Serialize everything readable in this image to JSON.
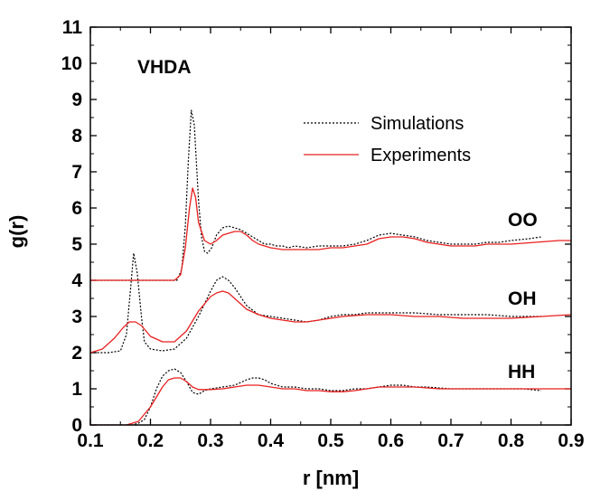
{
  "chart_data": {
    "type": "line",
    "xlabel": "r [nm]",
    "ylabel": "g(r)",
    "xlim": [
      0.1,
      0.9
    ],
    "ylim": [
      0,
      11
    ],
    "xticks": [
      "0.1",
      "0.2",
      "0.3",
      "0.4",
      "0.5",
      "0.6",
      "0.7",
      "0.8",
      "0.9"
    ],
    "yticks": [
      "0",
      "1",
      "2",
      "3",
      "4",
      "5",
      "6",
      "7",
      "8",
      "9",
      "10",
      "11"
    ],
    "grid": false,
    "legend_position": "top-right",
    "annotations": {
      "label": "VHDA",
      "oo": "OO",
      "oh": "OH",
      "hh": "HH"
    },
    "series": [
      {
        "name": "Simulations",
        "color": "#000000",
        "style": "dotted",
        "curves": [
          {
            "group": "OO",
            "points": [
              [
                0.1,
                4.0
              ],
              [
                0.2,
                4.0
              ],
              [
                0.244,
                4.0
              ],
              [
                0.252,
                4.3
              ],
              [
                0.258,
                5.5
              ],
              [
                0.263,
                7.3
              ],
              [
                0.268,
                8.7
              ],
              [
                0.273,
                8.3
              ],
              [
                0.28,
                6.2
              ],
              [
                0.285,
                5.2
              ],
              [
                0.29,
                4.8
              ],
              [
                0.295,
                4.75
              ],
              [
                0.302,
                4.9
              ],
              [
                0.31,
                5.25
              ],
              [
                0.32,
                5.45
              ],
              [
                0.33,
                5.5
              ],
              [
                0.34,
                5.45
              ],
              [
                0.35,
                5.4
              ],
              [
                0.36,
                5.3
              ],
              [
                0.37,
                5.2
              ],
              [
                0.38,
                5.1
              ],
              [
                0.39,
                5.0
              ],
              [
                0.4,
                5.0
              ],
              [
                0.41,
                4.95
              ],
              [
                0.42,
                4.95
              ],
              [
                0.43,
                4.9
              ],
              [
                0.44,
                4.95
              ],
              [
                0.46,
                4.9
              ],
              [
                0.48,
                4.95
              ],
              [
                0.5,
                4.95
              ],
              [
                0.52,
                4.95
              ],
              [
                0.54,
                5.0
              ],
              [
                0.56,
                5.1
              ],
              [
                0.58,
                5.25
              ],
              [
                0.6,
                5.3
              ],
              [
                0.62,
                5.25
              ],
              [
                0.64,
                5.2
              ],
              [
                0.66,
                5.1
              ],
              [
                0.68,
                5.05
              ],
              [
                0.7,
                5.0
              ],
              [
                0.72,
                5.0
              ],
              [
                0.74,
                5.0
              ],
              [
                0.76,
                5.05
              ],
              [
                0.78,
                5.05
              ],
              [
                0.8,
                5.1
              ],
              [
                0.83,
                5.15
              ],
              [
                0.85,
                5.2
              ]
            ]
          },
          {
            "group": "OH",
            "points": [
              [
                0.1,
                2.0
              ],
              [
                0.13,
                2.0
              ],
              [
                0.15,
                2.05
              ],
              [
                0.16,
                2.5
              ],
              [
                0.167,
                3.8
              ],
              [
                0.172,
                4.75
              ],
              [
                0.178,
                4.2
              ],
              [
                0.185,
                3.0
              ],
              [
                0.19,
                2.3
              ],
              [
                0.2,
                2.1
              ],
              [
                0.22,
                2.05
              ],
              [
                0.24,
                2.1
              ],
              [
                0.26,
                2.4
              ],
              [
                0.28,
                3.0
              ],
              [
                0.3,
                3.7
              ],
              [
                0.31,
                4.0
              ],
              [
                0.32,
                4.1
              ],
              [
                0.33,
                4.0
              ],
              [
                0.34,
                3.8
              ],
              [
                0.36,
                3.3
              ],
              [
                0.38,
                3.05
              ],
              [
                0.4,
                3.0
              ],
              [
                0.42,
                2.95
              ],
              [
                0.44,
                2.9
              ],
              [
                0.46,
                2.85
              ],
              [
                0.48,
                2.9
              ],
              [
                0.5,
                3.0
              ],
              [
                0.52,
                3.05
              ],
              [
                0.54,
                3.05
              ],
              [
                0.56,
                3.1
              ],
              [
                0.58,
                3.1
              ],
              [
                0.6,
                3.1
              ],
              [
                0.64,
                3.1
              ],
              [
                0.68,
                3.05
              ],
              [
                0.72,
                3.05
              ],
              [
                0.76,
                3.05
              ],
              [
                0.8,
                3.0
              ],
              [
                0.85,
                3.0
              ]
            ]
          },
          {
            "group": "HH",
            "points": [
              [
                0.1,
                0.0
              ],
              [
                0.17,
                0.0
              ],
              [
                0.18,
                0.05
              ],
              [
                0.19,
                0.15
              ],
              [
                0.2,
                0.5
              ],
              [
                0.21,
                1.0
              ],
              [
                0.22,
                1.35
              ],
              [
                0.23,
                1.5
              ],
              [
                0.24,
                1.55
              ],
              [
                0.25,
                1.45
              ],
              [
                0.26,
                1.2
              ],
              [
                0.27,
                0.9
              ],
              [
                0.28,
                0.85
              ],
              [
                0.29,
                0.95
              ],
              [
                0.3,
                1.0
              ],
              [
                0.32,
                1.05
              ],
              [
                0.34,
                1.1
              ],
              [
                0.36,
                1.25
              ],
              [
                0.37,
                1.3
              ],
              [
                0.38,
                1.3
              ],
              [
                0.39,
                1.25
              ],
              [
                0.4,
                1.15
              ],
              [
                0.42,
                1.05
              ],
              [
                0.44,
                1.05
              ],
              [
                0.46,
                1.0
              ],
              [
                0.48,
                1.0
              ],
              [
                0.5,
                0.95
              ],
              [
                0.52,
                0.95
              ],
              [
                0.54,
                1.0
              ],
              [
                0.56,
                1.0
              ],
              [
                0.58,
                1.05
              ],
              [
                0.6,
                1.1
              ],
              [
                0.62,
                1.1
              ],
              [
                0.64,
                1.05
              ],
              [
                0.66,
                1.05
              ],
              [
                0.7,
                1.0
              ],
              [
                0.74,
                1.0
              ],
              [
                0.78,
                1.0
              ],
              [
                0.82,
                1.0
              ],
              [
                0.85,
                0.95
              ]
            ]
          }
        ]
      },
      {
        "name": "Experiments",
        "color": "#e8201e",
        "style": "solid",
        "curves": [
          {
            "group": "OO",
            "points": [
              [
                0.1,
                4.0
              ],
              [
                0.2,
                4.0
              ],
              [
                0.24,
                4.0
              ],
              [
                0.25,
                4.15
              ],
              [
                0.258,
                4.9
              ],
              [
                0.265,
                6.0
              ],
              [
                0.27,
                6.55
              ],
              [
                0.275,
                6.3
              ],
              [
                0.28,
                5.6
              ],
              [
                0.29,
                5.1
              ],
              [
                0.3,
                5.0
              ],
              [
                0.31,
                5.1
              ],
              [
                0.32,
                5.25
              ],
              [
                0.33,
                5.3
              ],
              [
                0.34,
                5.35
              ],
              [
                0.35,
                5.35
              ],
              [
                0.36,
                5.25
              ],
              [
                0.37,
                5.1
              ],
              [
                0.38,
                5.0
              ],
              [
                0.4,
                4.9
              ],
              [
                0.42,
                4.85
              ],
              [
                0.44,
                4.85
              ],
              [
                0.46,
                4.85
              ],
              [
                0.48,
                4.85
              ],
              [
                0.5,
                4.9
              ],
              [
                0.52,
                4.9
              ],
              [
                0.54,
                4.95
              ],
              [
                0.56,
                5.0
              ],
              [
                0.58,
                5.15
              ],
              [
                0.6,
                5.2
              ],
              [
                0.62,
                5.2
              ],
              [
                0.64,
                5.15
              ],
              [
                0.66,
                5.05
              ],
              [
                0.68,
                5.0
              ],
              [
                0.7,
                4.95
              ],
              [
                0.72,
                4.95
              ],
              [
                0.74,
                4.95
              ],
              [
                0.76,
                5.0
              ],
              [
                0.8,
                5.0
              ],
              [
                0.84,
                5.05
              ],
              [
                0.88,
                5.1
              ],
              [
                0.9,
                5.1
              ]
            ]
          },
          {
            "group": "OH",
            "points": [
              [
                0.1,
                2.0
              ],
              [
                0.12,
                2.1
              ],
              [
                0.14,
                2.4
              ],
              [
                0.155,
                2.7
              ],
              [
                0.165,
                2.85
              ],
              [
                0.175,
                2.85
              ],
              [
                0.185,
                2.75
              ],
              [
                0.2,
                2.45
              ],
              [
                0.22,
                2.3
              ],
              [
                0.24,
                2.3
              ],
              [
                0.26,
                2.6
              ],
              [
                0.28,
                3.15
              ],
              [
                0.3,
                3.55
              ],
              [
                0.31,
                3.65
              ],
              [
                0.32,
                3.7
              ],
              [
                0.33,
                3.65
              ],
              [
                0.34,
                3.5
              ],
              [
                0.36,
                3.2
              ],
              [
                0.38,
                3.05
              ],
              [
                0.4,
                2.95
              ],
              [
                0.42,
                2.9
              ],
              [
                0.44,
                2.85
              ],
              [
                0.46,
                2.85
              ],
              [
                0.48,
                2.9
              ],
              [
                0.5,
                2.95
              ],
              [
                0.52,
                3.0
              ],
              [
                0.56,
                3.05
              ],
              [
                0.6,
                3.05
              ],
              [
                0.64,
                3.0
              ],
              [
                0.68,
                3.0
              ],
              [
                0.72,
                2.95
              ],
              [
                0.76,
                2.95
              ],
              [
                0.8,
                2.95
              ],
              [
                0.85,
                3.0
              ],
              [
                0.9,
                3.05
              ]
            ]
          },
          {
            "group": "HH",
            "points": [
              [
                0.1,
                0.0
              ],
              [
                0.16,
                0.0
              ],
              [
                0.18,
                0.1
              ],
              [
                0.2,
                0.5
              ],
              [
                0.22,
                1.05
              ],
              [
                0.23,
                1.25
              ],
              [
                0.24,
                1.3
              ],
              [
                0.25,
                1.3
              ],
              [
                0.26,
                1.2
              ],
              [
                0.27,
                1.05
              ],
              [
                0.28,
                0.98
              ],
              [
                0.3,
                0.98
              ],
              [
                0.32,
                1.0
              ],
              [
                0.34,
                1.05
              ],
              [
                0.36,
                1.1
              ],
              [
                0.38,
                1.1
              ],
              [
                0.4,
                1.05
              ],
              [
                0.42,
                1.0
              ],
              [
                0.44,
                1.0
              ],
              [
                0.46,
                0.95
              ],
              [
                0.48,
                0.95
              ],
              [
                0.5,
                0.92
              ],
              [
                0.52,
                0.92
              ],
              [
                0.54,
                0.95
              ],
              [
                0.56,
                1.0
              ],
              [
                0.58,
                1.05
              ],
              [
                0.6,
                1.05
              ],
              [
                0.62,
                1.05
              ],
              [
                0.64,
                1.05
              ],
              [
                0.68,
                1.0
              ],
              [
                0.72,
                1.0
              ],
              [
                0.76,
                1.0
              ],
              [
                0.8,
                1.0
              ],
              [
                0.85,
                1.0
              ],
              [
                0.9,
                1.0
              ]
            ]
          }
        ]
      }
    ]
  }
}
